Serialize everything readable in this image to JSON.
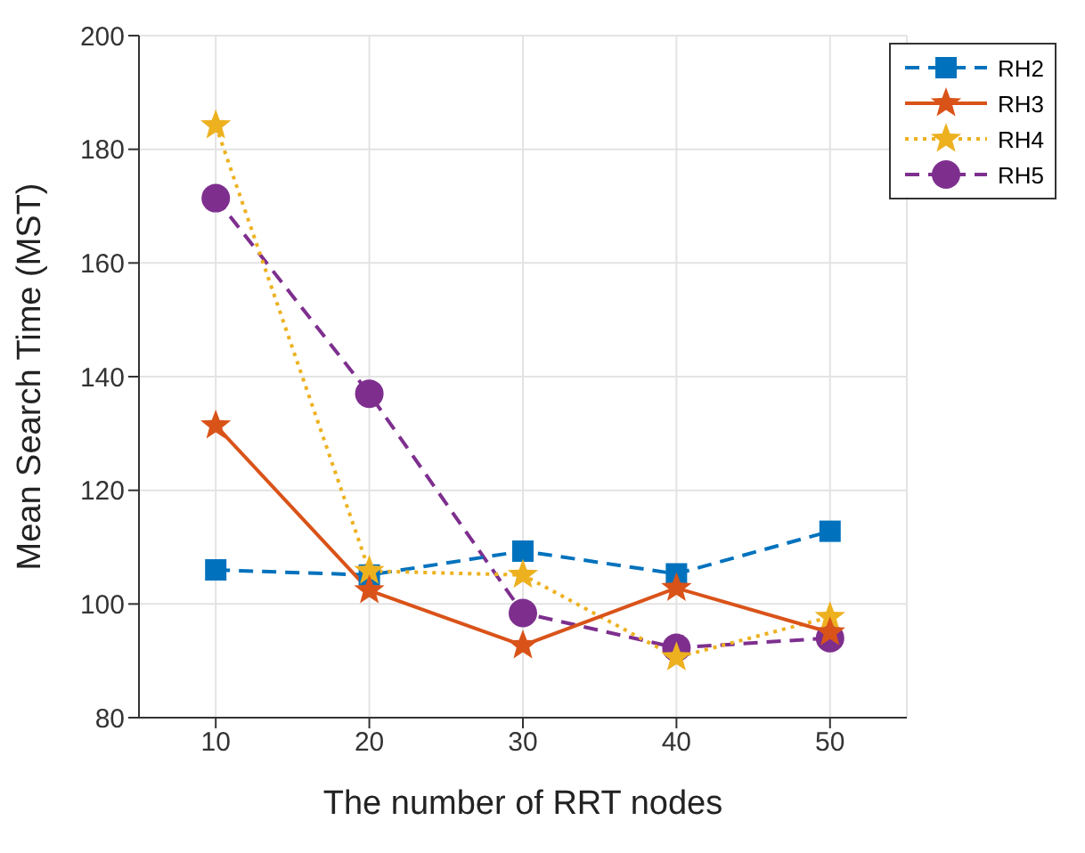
{
  "chart_data": {
    "type": "line",
    "xlabel": "The number of RRT nodes",
    "ylabel": "Mean Search Time (MST)",
    "x": [
      10,
      20,
      30,
      40,
      50
    ],
    "series": [
      {
        "name": "RH2",
        "color": "#0072bd",
        "values": [
          106,
          105.1,
          109.3,
          105.3,
          112.8
        ],
        "marker": "square",
        "line_style": "dashed"
      },
      {
        "name": "RH3",
        "color": "#d95319",
        "values": [
          131.4,
          102.4,
          92.7,
          102.8,
          95
        ],
        "marker": "star",
        "line_style": "solid"
      },
      {
        "name": "RH4",
        "color": "#edb120",
        "values": [
          184.2,
          105.8,
          105.1,
          90.6,
          97.7
        ],
        "marker": "star",
        "line_style": "dotted"
      },
      {
        "name": "RH5",
        "color": "#7e2f8e",
        "values": [
          171.4,
          137,
          98.4,
          92.3,
          94
        ],
        "marker": "circle",
        "line_style": "dashed"
      }
    ],
    "xlim": [
      5,
      55
    ],
    "xticks": [
      10,
      20,
      30,
      40,
      50
    ],
    "ylim": [
      80,
      200
    ],
    "yticks": [
      80,
      100,
      120,
      140,
      160,
      180,
      200
    ],
    "grid": true,
    "legend": "top right"
  }
}
